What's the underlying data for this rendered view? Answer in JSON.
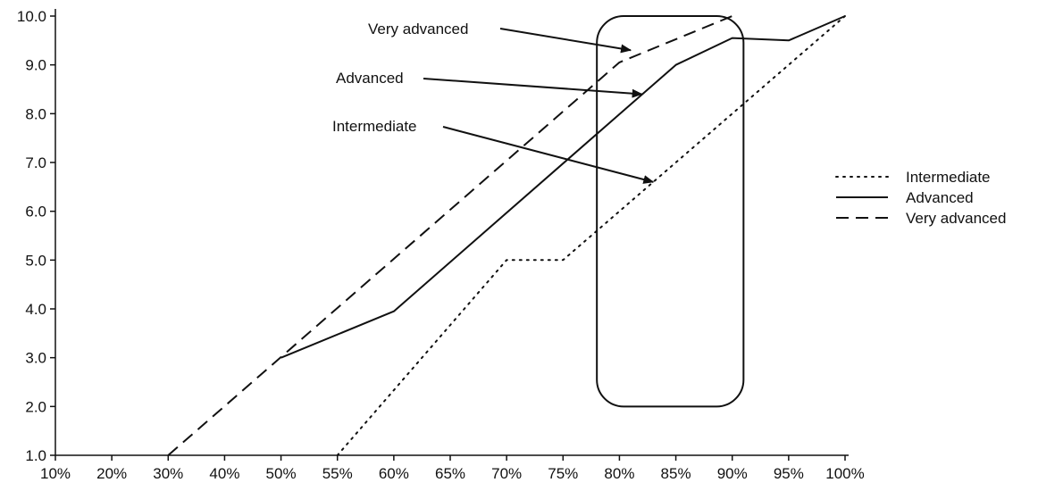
{
  "chart_data": {
    "type": "line",
    "title": "",
    "xlabel": "",
    "ylabel": "",
    "x_tick_labels": [
      "10%",
      "20%",
      "30%",
      "40%",
      "50%",
      "55%",
      "60%",
      "65%",
      "70%",
      "75%",
      "80%",
      "85%",
      "90%",
      "95%",
      "100%"
    ],
    "y_tick_labels": [
      "1.0",
      "2.0",
      "3.0",
      "4.0",
      "5.0",
      "6.0",
      "7.0",
      "8.0",
      "9.0",
      "10.0"
    ],
    "ylim": [
      1,
      10
    ],
    "grid": false,
    "legend_position": "right",
    "series": [
      {
        "name": "Intermediate",
        "line_style": "dotted",
        "x": [
          "55%",
          "70%",
          "75%",
          "100%"
        ],
        "y": [
          1.0,
          5.0,
          5.0,
          10.0
        ]
      },
      {
        "name": "Advanced",
        "line_style": "solid",
        "x": [
          "50%",
          "60%",
          "85%",
          "90%",
          "95%",
          "100%"
        ],
        "y": [
          3.0,
          3.95,
          9.0,
          9.55,
          9.5,
          10.0
        ]
      },
      {
        "name": "Very advanced",
        "line_style": "dashed",
        "x": [
          "30%",
          "80%",
          "90%"
        ],
        "y": [
          1.0,
          9.05,
          10.0
        ]
      }
    ],
    "annotations": [
      {
        "text": "Very advanced",
        "arrow_to": {
          "x": "81%",
          "y": 9.3
        }
      },
      {
        "text": "Advanced",
        "arrow_to": {
          "x": "82%",
          "y": 8.4
        }
      },
      {
        "text": "Intermediate",
        "arrow_to": {
          "x": "83%",
          "y": 6.6
        }
      }
    ],
    "highlight_region": {
      "x_from": "78%",
      "x_to": "91%",
      "y_from": 2.0,
      "y_to": 10.0
    }
  }
}
